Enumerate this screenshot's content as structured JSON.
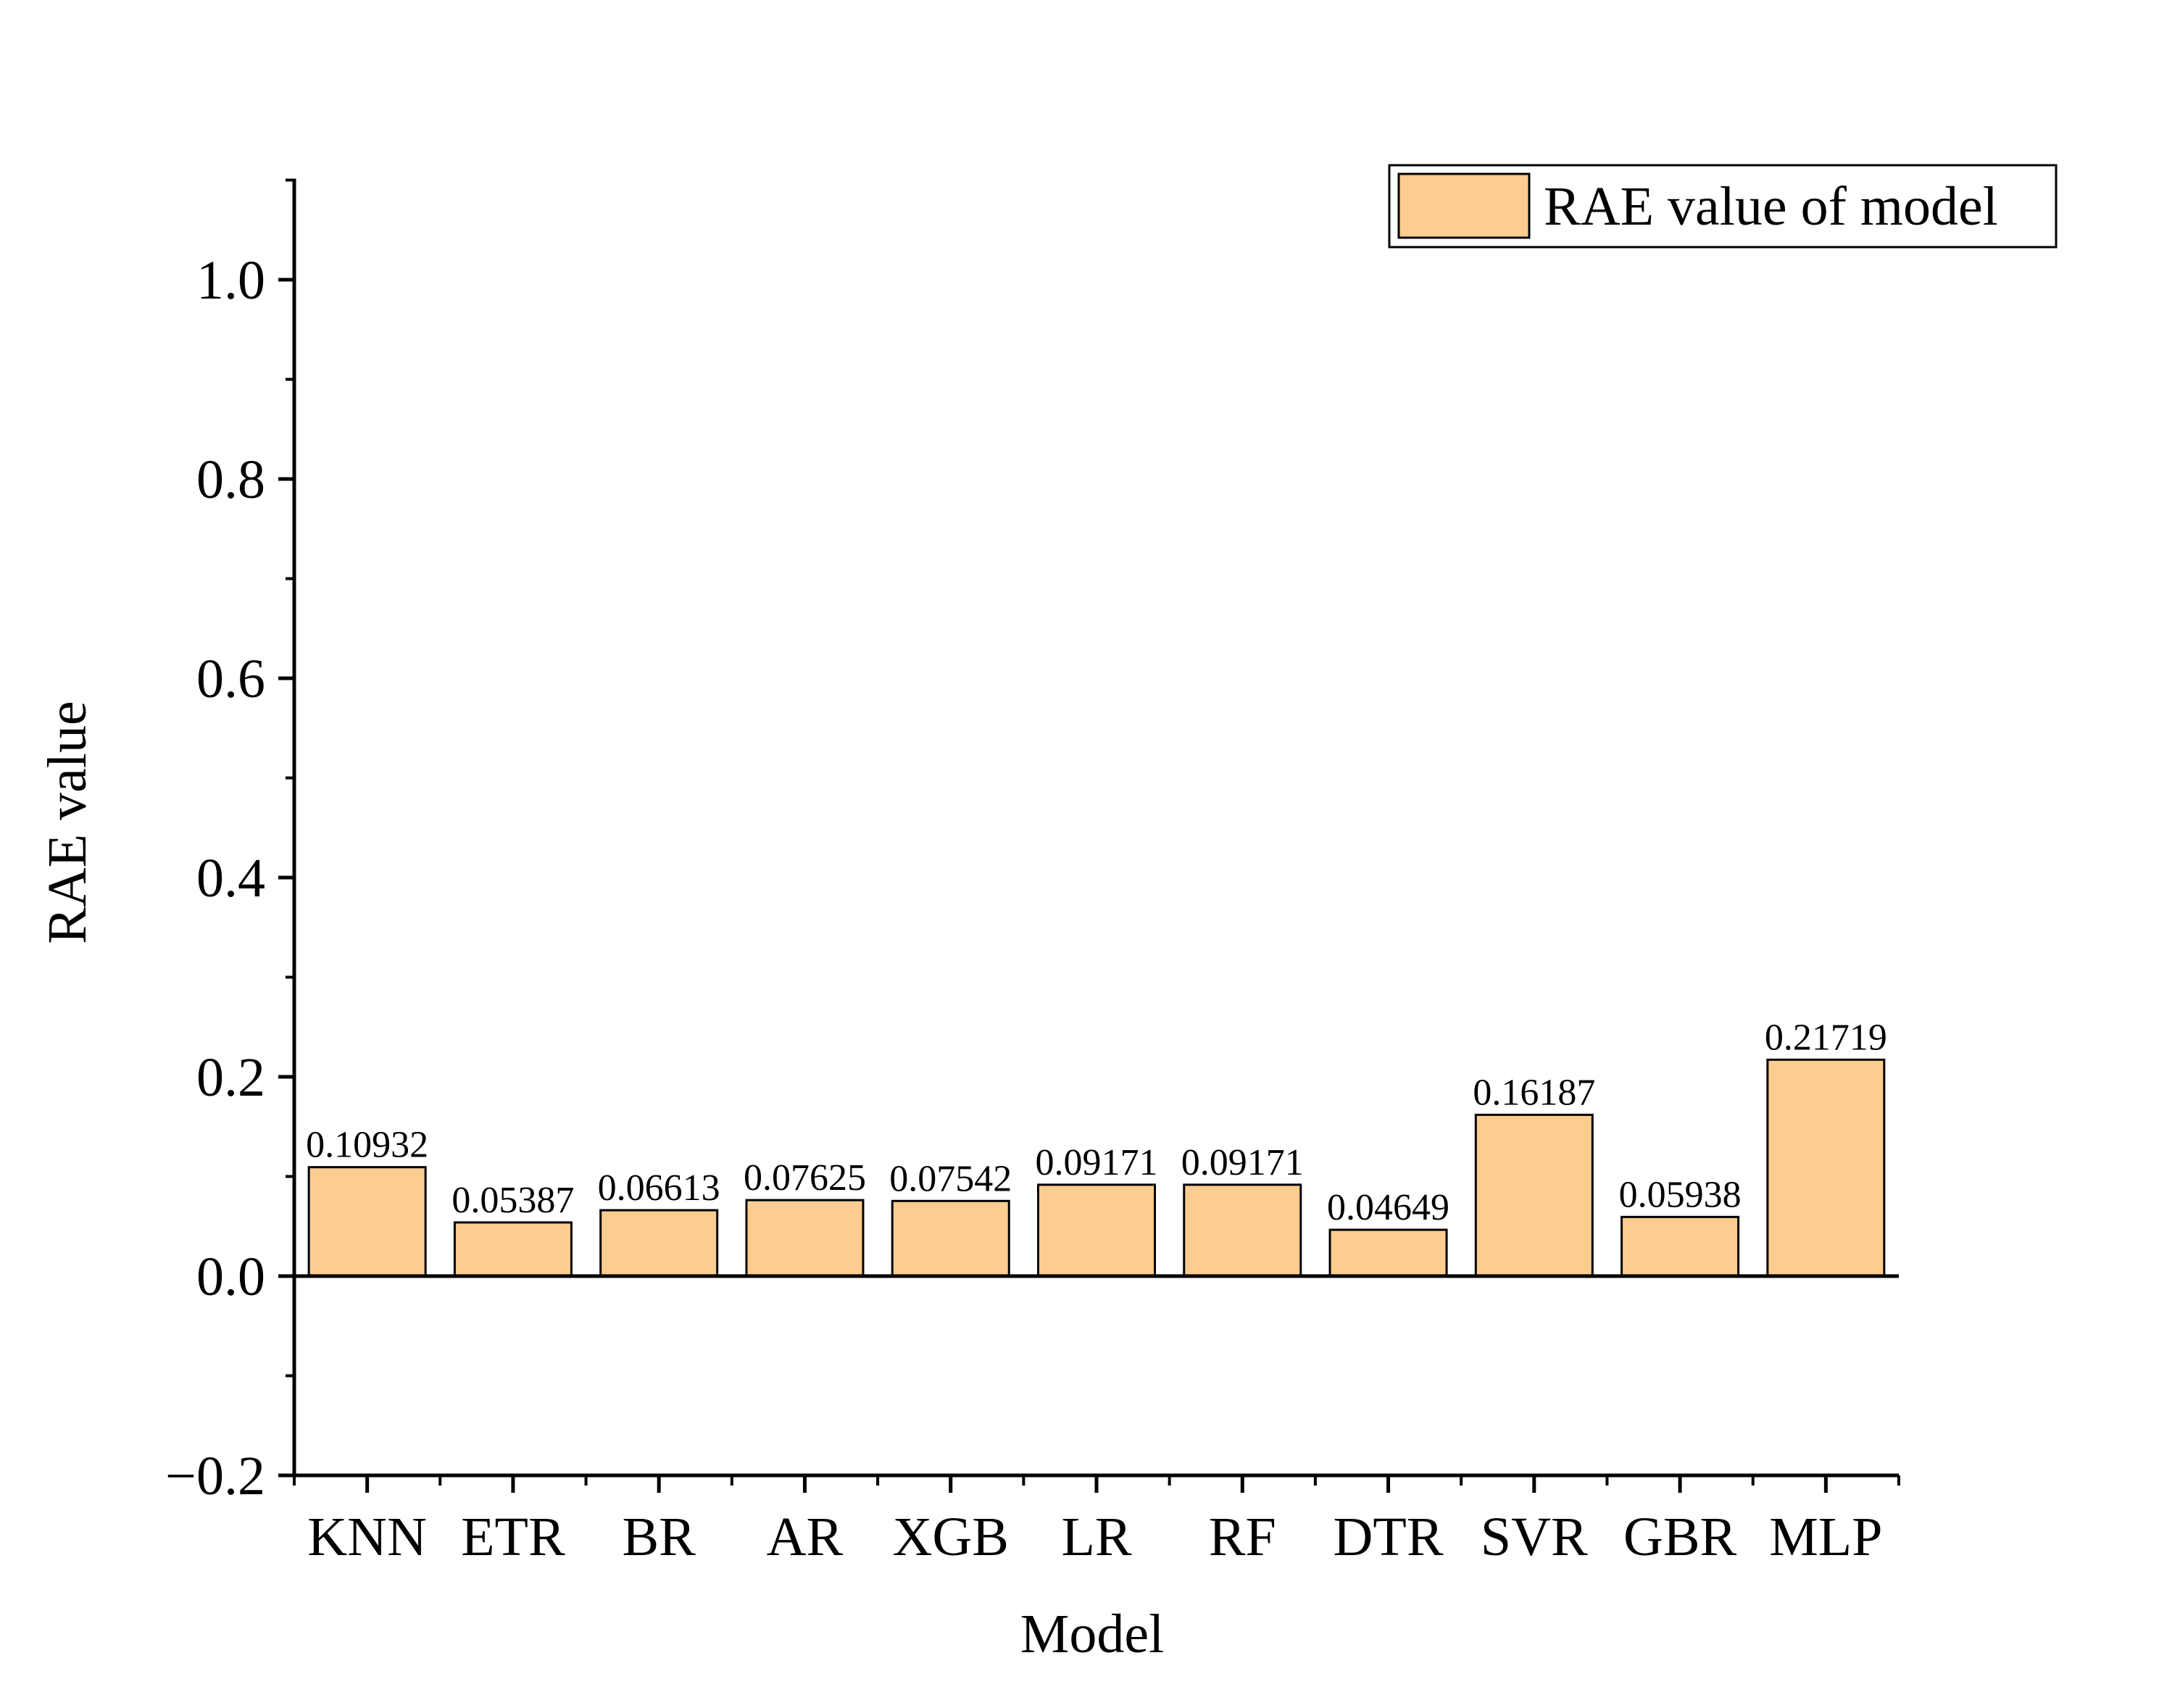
{
  "chart_data": {
    "type": "bar",
    "title": "",
    "xlabel": "Model",
    "ylabel": "RAE value",
    "categories": [
      "KNN",
      "ETR",
      "BR",
      "AR",
      "XGB",
      "LR",
      "RF",
      "DTR",
      "SVR",
      "GBR",
      "MLP"
    ],
    "series": [
      {
        "name": "RAE value of model",
        "values": [
          0.10932,
          0.05387,
          0.06613,
          0.07625,
          0.07542,
          0.09171,
          0.09171,
          0.04649,
          0.16187,
          0.05938,
          0.21719
        ],
        "labels": [
          "0.10932",
          "0.05387",
          "0.06613",
          "0.07625",
          "0.07542",
          "0.09171",
          "0.09171",
          "0.04649",
          "0.16187",
          "0.05938",
          "0.21719"
        ]
      }
    ],
    "ylim": [
      -0.2,
      1.1
    ],
    "yticks": [
      -0.2,
      0.0,
      0.2,
      0.4,
      0.6,
      0.8,
      1.0
    ],
    "ytick_labels": [
      "−0.2",
      "0.0",
      "0.2",
      "0.4",
      "0.6",
      "0.8",
      "1.0"
    ],
    "grid": false,
    "legend_position": "top-right",
    "colors": {
      "bar_fill": "#FDCC90",
      "bar_stroke": "#000000",
      "axis": "#000000"
    }
  }
}
